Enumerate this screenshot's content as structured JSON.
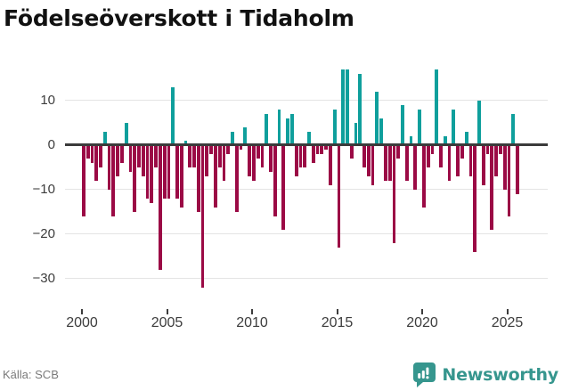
{
  "title": "Födelseöverskott i Tidaholm",
  "source": "Källa: SCB",
  "brand": {
    "name": "Newsworthy",
    "color": "#36968e"
  },
  "chart_data": {
    "type": "bar",
    "title": "Födelseöverskott i Tidaholm",
    "frequency": "quarterly",
    "start": {
      "year": 2000,
      "quarter": 1
    },
    "end": {
      "year": 2025,
      "quarter": 3
    },
    "unit": "persons",
    "positive_color": "#0f9f9c",
    "negative_color": "#9b0a45",
    "grid": true,
    "ylim": [
      -34,
      18
    ],
    "y_ticks": [
      10,
      0,
      -10,
      -20,
      -30
    ],
    "y_tick_labels": [
      "10",
      "0",
      "−10",
      "−20",
      "−30"
    ],
    "x_ticks": [
      2000,
      2005,
      2010,
      2015,
      2020,
      2025
    ],
    "x_tick_labels": [
      "2000",
      "2005",
      "2010",
      "2015",
      "2020",
      "2025"
    ],
    "series": [
      {
        "year": 2000,
        "values": [
          -16,
          -3,
          -4,
          -8
        ]
      },
      {
        "year": 2001,
        "values": [
          -5,
          3,
          -10,
          -16
        ]
      },
      {
        "year": 2002,
        "values": [
          -7,
          -4,
          5,
          -6
        ]
      },
      {
        "year": 2003,
        "values": [
          -15,
          -5,
          -7,
          -12
        ]
      },
      {
        "year": 2004,
        "values": [
          -13,
          -5,
          -28,
          -12
        ]
      },
      {
        "year": 2005,
        "values": [
          -12,
          13,
          -12,
          -14
        ]
      },
      {
        "year": 2006,
        "values": [
          1,
          -5,
          -5,
          -15
        ]
      },
      {
        "year": 2007,
        "values": [
          -32,
          -7,
          -2,
          -14
        ]
      },
      {
        "year": 2008,
        "values": [
          -5,
          -8,
          -2,
          3
        ]
      },
      {
        "year": 2009,
        "values": [
          -15,
          -1,
          4,
          -7
        ]
      },
      {
        "year": 2010,
        "values": [
          -8,
          -3,
          -5,
          7
        ]
      },
      {
        "year": 2011,
        "values": [
          -6,
          -16,
          8,
          -19
        ]
      },
      {
        "year": 2012,
        "values": [
          6,
          7,
          -7,
          -5
        ]
      },
      {
        "year": 2013,
        "values": [
          -5,
          3,
          -4,
          -2
        ]
      },
      {
        "year": 2014,
        "values": [
          -2,
          -1,
          -9,
          8
        ]
      },
      {
        "year": 2015,
        "values": [
          -23,
          17,
          17,
          -3
        ]
      },
      {
        "year": 2016,
        "values": [
          5,
          16,
          -5,
          -7
        ]
      },
      {
        "year": 2017,
        "values": [
          -9,
          12,
          6,
          -8
        ]
      },
      {
        "year": 2018,
        "values": [
          -8,
          -22,
          -3,
          9
        ]
      },
      {
        "year": 2019,
        "values": [
          -8,
          2,
          -10,
          8
        ]
      },
      {
        "year": 2020,
        "values": [
          -14,
          -5,
          -2,
          17
        ]
      },
      {
        "year": 2021,
        "values": [
          -5,
          2,
          -8,
          8
        ]
      },
      {
        "year": 2022,
        "values": [
          -7,
          -3,
          3,
          -7
        ]
      },
      {
        "year": 2023,
        "values": [
          -24,
          10,
          -9,
          -2
        ]
      },
      {
        "year": 2024,
        "values": [
          -19,
          -7,
          -2,
          -10
        ]
      },
      {
        "year": 2025,
        "values": [
          -16,
          7,
          -11
        ]
      }
    ]
  }
}
